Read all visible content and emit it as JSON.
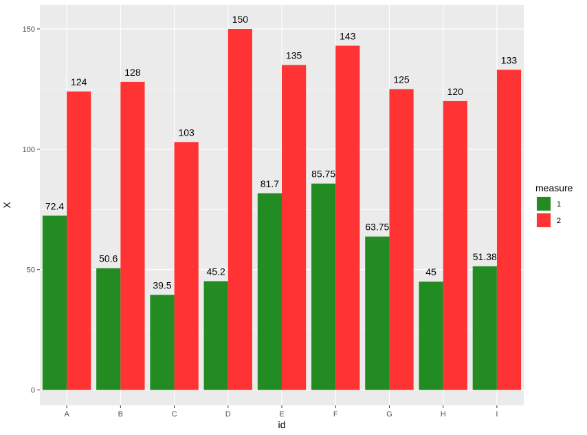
{
  "chart_data": {
    "type": "bar",
    "title": "",
    "xlabel": "id",
    "ylabel": "X",
    "categories": [
      "A",
      "B",
      "C",
      "D",
      "E",
      "F",
      "G",
      "H",
      "I"
    ],
    "series": [
      {
        "name": "1",
        "color": "#228B22",
        "values": [
          72.4,
          50.6,
          39.5,
          45.2,
          81.7,
          85.75,
          63.75,
          45,
          51.38
        ],
        "labels": [
          "72.4",
          "50.6",
          "39.5",
          "45.2",
          "81.7",
          "85.75",
          "63.75",
          "45",
          "51.38"
        ]
      },
      {
        "name": "2",
        "color": "#FF3333",
        "values": [
          124,
          128,
          103,
          150,
          135,
          143,
          125,
          120,
          133
        ],
        "labels": [
          "124",
          "128",
          "103",
          "150",
          "135",
          "143",
          "125",
          "120",
          "133"
        ]
      }
    ],
    "ylim": [
      -6.4,
      160
    ],
    "yticks": [
      0,
      50,
      100,
      150
    ],
    "ytick_labels": [
      "0",
      "50",
      "100",
      "150"
    ],
    "grid": true,
    "legend": {
      "title": "measure",
      "position": "right",
      "entries": [
        "1",
        "2"
      ]
    }
  }
}
